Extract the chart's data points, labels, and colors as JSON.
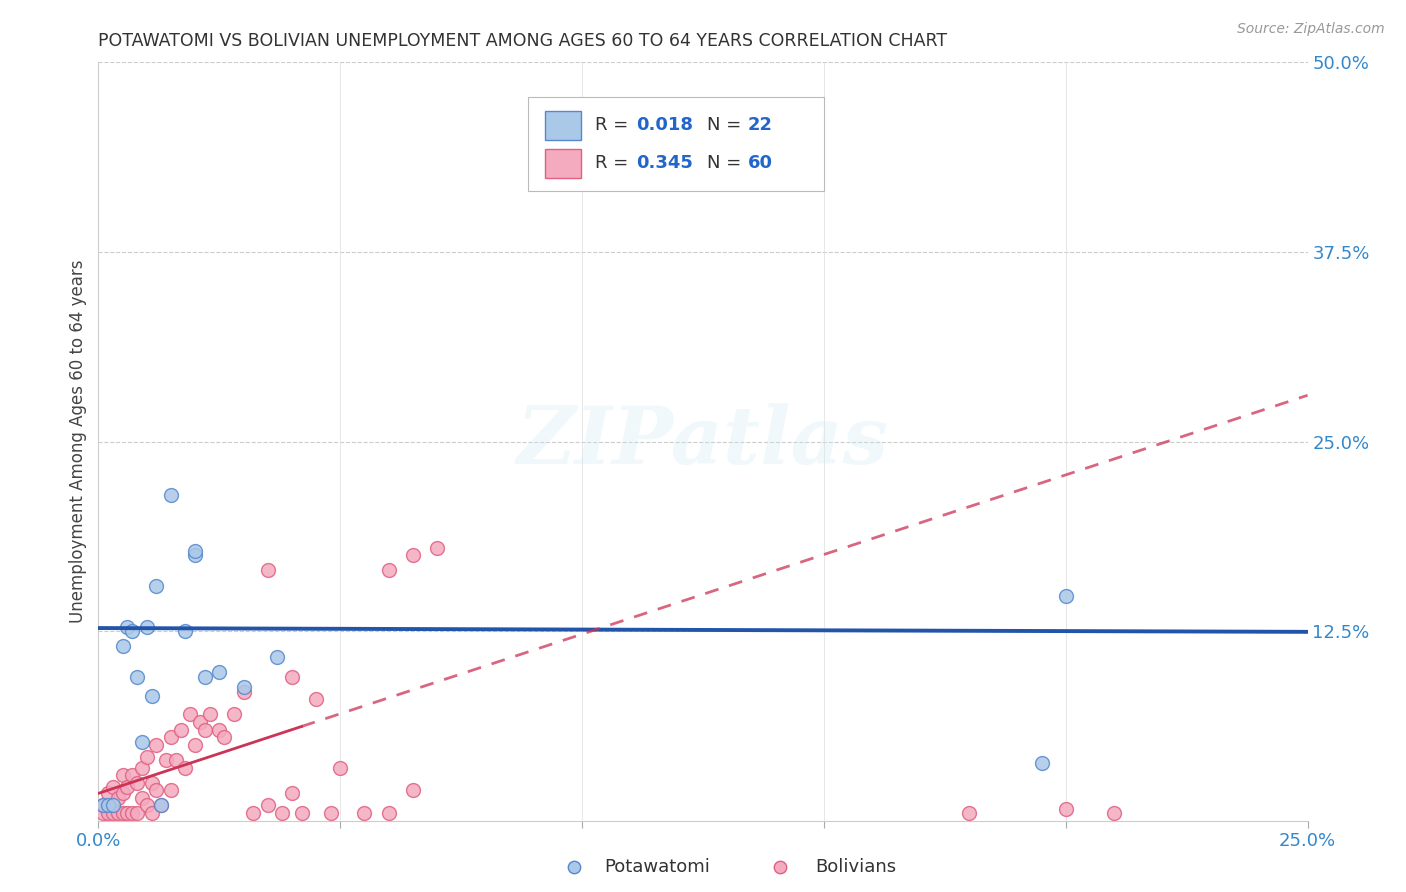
{
  "title": "POTAWATOMI VS BOLIVIAN UNEMPLOYMENT AMONG AGES 60 TO 64 YEARS CORRELATION CHART",
  "source": "Source: ZipAtlas.com",
  "ylabel": "Unemployment Among Ages 60 to 64 years",
  "xlim": [
    0.0,
    0.25
  ],
  "ylim": [
    0.0,
    0.5
  ],
  "xticks": [
    0.0,
    0.05,
    0.1,
    0.15,
    0.2,
    0.25
  ],
  "xtick_labels": [
    "0.0%",
    "",
    "",
    "",
    "",
    "25.0%"
  ],
  "yticks_right": [
    0.0,
    0.125,
    0.25,
    0.375,
    0.5
  ],
  "ytick_labels_right": [
    "",
    "12.5%",
    "25.0%",
    "37.5%",
    "50.0%"
  ],
  "background_color": "#ffffff",
  "grid_color": "#cccccc",
  "potawatomi_color": "#aac8e8",
  "bolivian_color": "#f4aabf",
  "potawatomi_edge": "#5588cc",
  "bolivian_edge": "#e06080",
  "trend_potawatomi_color": "#2255aa",
  "trend_bolivian_color": "#cc3355",
  "legend_R1": "0.018",
  "legend_N1": "22",
  "legend_R2": "0.345",
  "legend_N2": "60",
  "watermark": "ZIPatlas",
  "marker_size": 100,
  "potawatomi_x": [
    0.001,
    0.002,
    0.003,
    0.005,
    0.006,
    0.007,
    0.008,
    0.009,
    0.01,
    0.011,
    0.012,
    0.013,
    0.015,
    0.018,
    0.02,
    0.022,
    0.025,
    0.03,
    0.037,
    0.02,
    0.195,
    0.2
  ],
  "potawatomi_y": [
    0.01,
    0.01,
    0.01,
    0.115,
    0.128,
    0.125,
    0.095,
    0.052,
    0.128,
    0.082,
    0.155,
    0.01,
    0.215,
    0.125,
    0.175,
    0.095,
    0.098,
    0.088,
    0.108,
    0.178,
    0.038,
    0.148
  ],
  "bolivian_x": [
    0.001,
    0.001,
    0.002,
    0.002,
    0.003,
    0.003,
    0.004,
    0.004,
    0.005,
    0.005,
    0.005,
    0.006,
    0.006,
    0.007,
    0.007,
    0.008,
    0.008,
    0.009,
    0.009,
    0.01,
    0.01,
    0.011,
    0.011,
    0.012,
    0.012,
    0.013,
    0.014,
    0.015,
    0.015,
    0.016,
    0.017,
    0.018,
    0.019,
    0.02,
    0.021,
    0.022,
    0.023,
    0.025,
    0.026,
    0.028,
    0.03,
    0.032,
    0.035,
    0.038,
    0.04,
    0.042,
    0.045,
    0.048,
    0.05,
    0.055,
    0.06,
    0.065,
    0.06,
    0.065,
    0.07,
    0.035,
    0.04,
    0.18,
    0.2,
    0.21
  ],
  "bolivian_y": [
    0.005,
    0.01,
    0.005,
    0.018,
    0.005,
    0.022,
    0.005,
    0.015,
    0.005,
    0.018,
    0.03,
    0.005,
    0.022,
    0.005,
    0.03,
    0.005,
    0.025,
    0.015,
    0.035,
    0.01,
    0.042,
    0.005,
    0.025,
    0.02,
    0.05,
    0.01,
    0.04,
    0.02,
    0.055,
    0.04,
    0.06,
    0.035,
    0.07,
    0.05,
    0.065,
    0.06,
    0.07,
    0.06,
    0.055,
    0.07,
    0.085,
    0.005,
    0.01,
    0.005,
    0.018,
    0.005,
    0.08,
    0.005,
    0.035,
    0.005,
    0.005,
    0.02,
    0.165,
    0.175,
    0.18,
    0.165,
    0.095,
    0.005,
    0.008,
    0.005
  ],
  "trend_bolivian_solid_end": 0.042,
  "trend_potawatomi_intercept": 0.127,
  "trend_potawatomi_slope": -0.01,
  "trend_bolivian_intercept": 0.018,
  "trend_bolivian_slope": 1.05
}
